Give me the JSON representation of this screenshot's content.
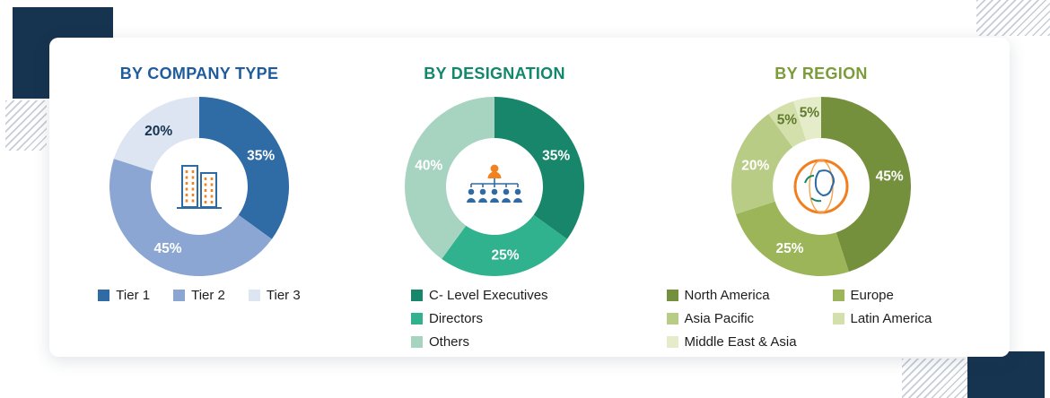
{
  "decor": {
    "navy_color": "#16334f",
    "stripe_color": "#c7cdd6"
  },
  "chart_data": [
    {
      "type": "donut",
      "title": "BY COMPANY TYPE",
      "title_color": "#1f5c9e",
      "center_icon": "buildings-icon",
      "legend_layout": "row",
      "unit": "%",
      "categories": [
        "Tier 1",
        "Tier 2",
        "Tier 3"
      ],
      "values": [
        35,
        45,
        20
      ],
      "colors": [
        "#2f6ba4",
        "#8ba6d3",
        "#dde4f2"
      ],
      "value_label_colors": [
        "#ffffff",
        "#ffffff",
        "#16334f"
      ]
    },
    {
      "type": "donut",
      "title": "BY DESIGNATION",
      "title_color": "#12876b",
      "center_icon": "org-chart-icon",
      "legend_layout": "column",
      "unit": "%",
      "categories": [
        "C- Level Executives",
        "Directors",
        "Others"
      ],
      "values": [
        35,
        25,
        40
      ],
      "colors": [
        "#17866a",
        "#30b28e",
        "#a7d4c1"
      ],
      "value_label_colors": [
        "#ffffff",
        "#ffffff",
        "#ffffff"
      ]
    },
    {
      "type": "donut",
      "title": "BY REGION",
      "title_color": "#7c9c3a",
      "center_icon": "globe-icon",
      "legend_layout": "grid-2",
      "unit": "%",
      "categories": [
        "North America",
        "Europe",
        "Asia Pacific",
        "Latin America",
        "Middle East & Asia"
      ],
      "values": [
        45,
        25,
        20,
        5,
        5
      ],
      "colors": [
        "#75903c",
        "#9cb558",
        "#b9cc85",
        "#d3e0ab",
        "#e4ecca"
      ],
      "value_label_colors": [
        "#ffffff",
        "#ffffff",
        "#ffffff",
        "#5f7a2d",
        "#5f7a2d"
      ]
    }
  ]
}
